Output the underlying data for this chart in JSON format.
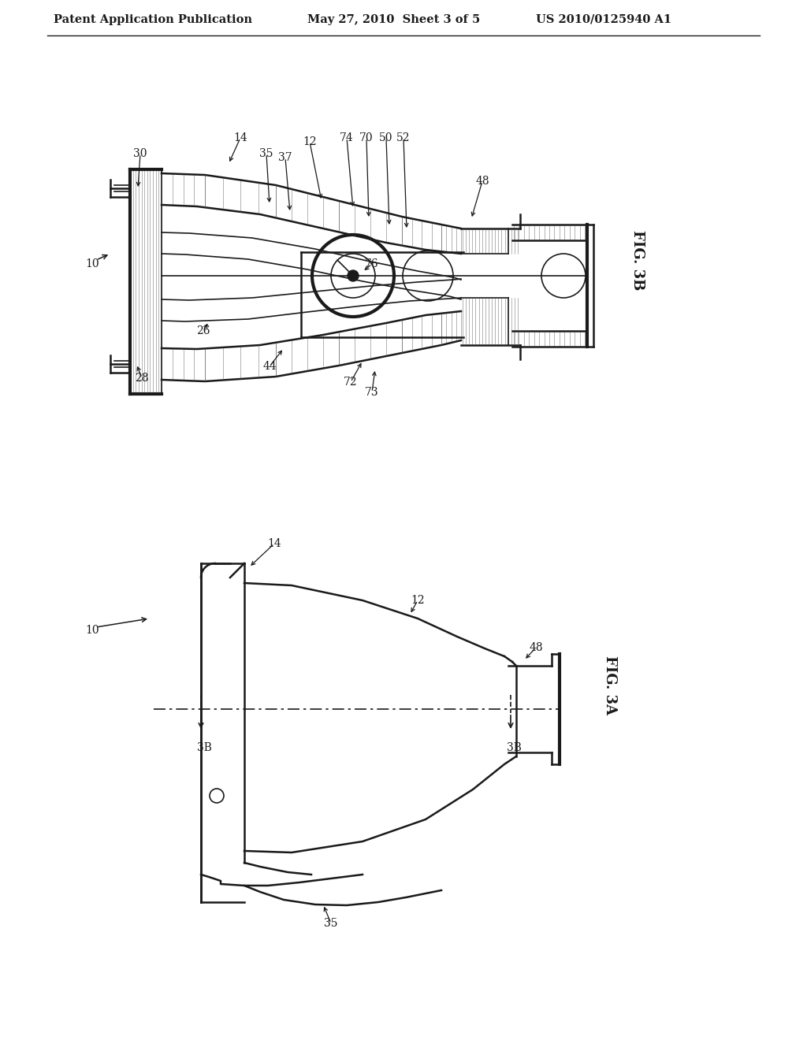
{
  "background_color": "#ffffff",
  "header_left": "Patent Application Publication",
  "header_center": "May 27, 2010  Sheet 3 of 5",
  "header_right": "US 2010/0125940 A1",
  "header_fontsize": 10.5,
  "fig3b_label": "FIG. 3B",
  "fig3a_label": "FIG. 3A",
  "line_color": "#1a1a1a",
  "hatch_color": "#444444",
  "label_fontsize": 10,
  "fig_label_fontsize": 13,
  "arrow_color": "#1a1a1a"
}
